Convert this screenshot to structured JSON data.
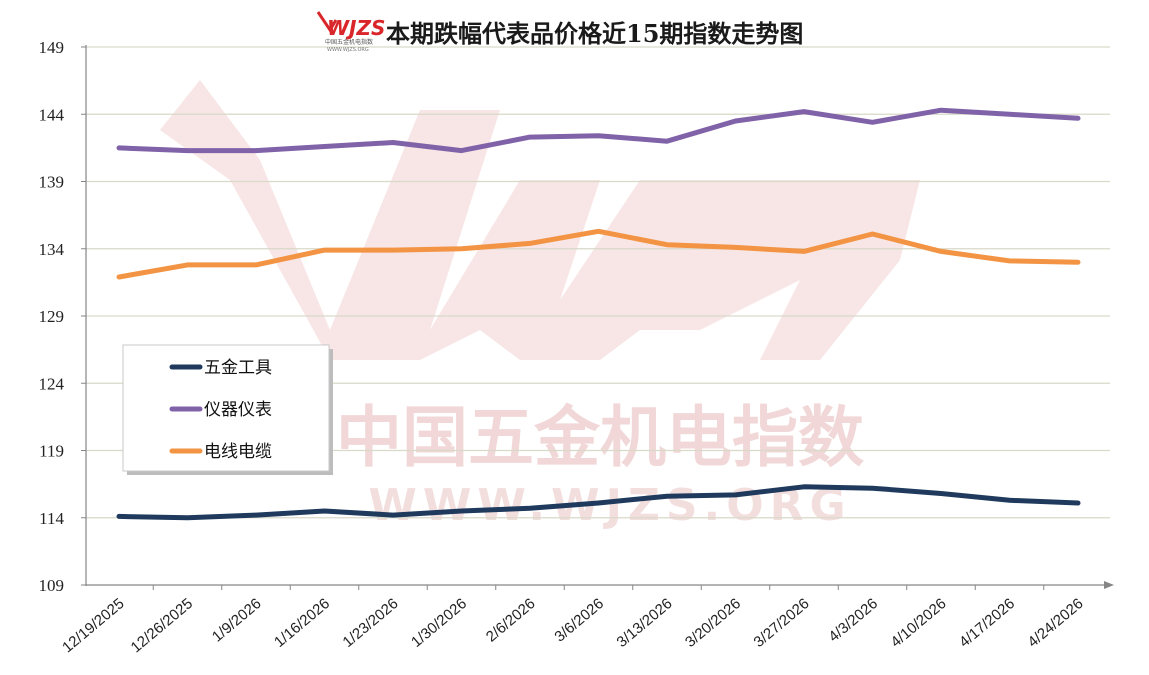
{
  "logo": {
    "brand": "WJZS",
    "sub_cn": "中国五金机电指数",
    "sub_url": "WWW.WJZS.ORG"
  },
  "watermark": {
    "cn": "中国五金机电指数",
    "url": "WWW.WJZS.ORG",
    "brand": "WJZS"
  },
  "colors": {
    "wuji": "#1f3a5c",
    "yiqi": "#8062a8",
    "dianxian": "#f29443",
    "grid": "#d9d9c9",
    "axis": "#868686",
    "logo_red": "#d9262a"
  },
  "chart_data": {
    "type": "line",
    "title": "本期跌幅代表品价格近15期指数走势图",
    "xlabel": "",
    "ylabel": "",
    "ylim": [
      109,
      149
    ],
    "yticks": [
      "149",
      "144",
      "139",
      "134",
      "129",
      "124",
      "119",
      "114",
      "109"
    ],
    "categories": [
      "12/19/2025",
      "12/26/2025",
      "1/9/2026",
      "1/16/2026",
      "1/23/2026",
      "1/30/2026",
      "2/6/2026",
      "3/6/2026",
      "3/13/2026",
      "3/20/2026",
      "3/27/2026",
      "4/3/2026",
      "4/10/2026",
      "4/17/2026",
      "4/24/2026"
    ],
    "grid": true,
    "legend_position": "left-middle",
    "series": [
      {
        "name": "五金工具",
        "color": "#1f3a5c",
        "values": [
          114.1,
          114.0,
          114.2,
          114.5,
          114.2,
          114.5,
          114.7,
          115.1,
          115.6,
          115.7,
          116.3,
          116.2,
          115.8,
          115.3,
          115.1
        ]
      },
      {
        "name": "仪器仪表",
        "color": "#8062a8",
        "values": [
          141.5,
          141.3,
          141.3,
          141.6,
          141.9,
          141.3,
          142.3,
          142.4,
          142.0,
          143.5,
          144.2,
          143.4,
          144.3,
          144.0,
          143.7
        ]
      },
      {
        "name": "电线电缆",
        "color": "#f29443",
        "values": [
          131.9,
          132.8,
          132.8,
          133.9,
          133.9,
          134.0,
          134.4,
          135.3,
          134.3,
          134.1,
          133.8,
          135.1,
          133.8,
          133.1,
          133.0
        ]
      }
    ]
  }
}
